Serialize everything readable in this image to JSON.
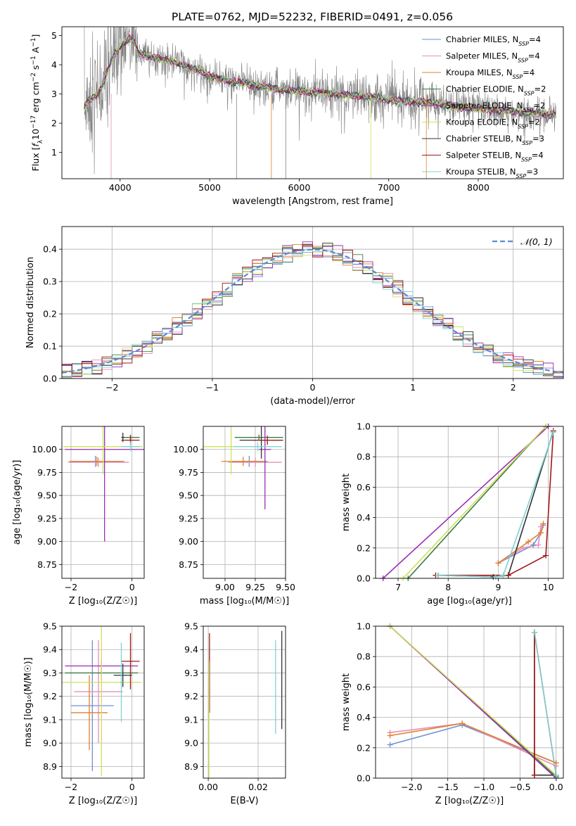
{
  "figure": {
    "title": "PLATE=0762, MJD=52232, FIBERID=0491, z=0.056"
  },
  "colors": {
    "chabrier_miles": "#6f8fd8",
    "salpeter_miles": "#e58fb8",
    "kroupa_miles": "#e0802a",
    "chabrier_elodie": "#3e7a44",
    "salpeter_elodie": "#9a2fb0",
    "kroupa_elodie": "#cfe05a",
    "chabrier_stelib": "#333333",
    "salpeter_stelib": "#a01818",
    "kroupa_stelib": "#7fd3d3",
    "data": "#808080",
    "grid": "#b0b0b0"
  },
  "chart_data": [
    {
      "id": "spectrum",
      "type": "line",
      "xlabel": "wavelength [Angstrom, rest frame]",
      "ylabel": "Flux [f_λ10^-17 erg cm^-2 s^-1 A^-1]",
      "xlim": [
        3350,
        8950
      ],
      "ylim": [
        0.1,
        5.3
      ],
      "xticks": [
        "4000",
        "5000",
        "6000",
        "7000",
        "8000"
      ],
      "yticks": [
        "1",
        "2",
        "3",
        "4",
        "5"
      ],
      "grid": false,
      "legend_placement": "upper-right",
      "legend": [
        {
          "label": "Chabrier MILES, N",
          "sub": "SSP",
          "tail": "=4",
          "color_key": "chabrier_miles"
        },
        {
          "label": "Salpeter MILES, N",
          "sub": "SSP",
          "tail": "=4",
          "color_key": "salpeter_miles"
        },
        {
          "label": "Kroupa MILES, N",
          "sub": "SSP",
          "tail": "=4",
          "color_key": "kroupa_miles"
        },
        {
          "label": "Chabrier ELODIE, N",
          "sub": "SSP",
          "tail": "=2",
          "color_key": "chabrier_elodie"
        },
        {
          "label": "Salpeter ELODIE, N",
          "sub": "SSP",
          "tail": "=2",
          "color_key": "salpeter_elodie"
        },
        {
          "label": "Kroupa ELODIE, N",
          "sub": "SSP",
          "tail": "=2",
          "color_key": "kroupa_elodie"
        },
        {
          "label": "Chabrier STELIB, N",
          "sub": "SSP",
          "tail": "=3",
          "color_key": "chabrier_stelib"
        },
        {
          "label": "Salpeter STELIB, N",
          "sub": "SSP",
          "tail": "=4",
          "color_key": "salpeter_stelib"
        },
        {
          "label": "Kroupa STELIB, N",
          "sub": "SSP",
          "tail": "=3",
          "color_key": "kroupa_stelib"
        }
      ],
      "model_continuum": {
        "x": [
          3600,
          3650,
          3700,
          3750,
          3800,
          3850,
          3900,
          3950,
          4000,
          4050,
          4100,
          4150,
          4200,
          4300,
          4400,
          4500,
          4600,
          4700,
          4800,
          4900,
          5000,
          5200,
          5400,
          5600,
          5800,
          6000,
          6200,
          6400,
          6600,
          6800,
          7000,
          7200,
          7400,
          7600,
          7800,
          8000,
          8200,
          8400,
          8600,
          8800
        ],
        "y": [
          2.5,
          2.8,
          2.9,
          3.0,
          3.3,
          3.7,
          4.1,
          4.4,
          4.6,
          4.8,
          4.9,
          4.85,
          4.4,
          4.3,
          4.25,
          4.15,
          4.1,
          4.0,
          3.85,
          3.8,
          3.6,
          3.45,
          3.35,
          3.25,
          3.15,
          3.1,
          3.05,
          3.0,
          2.95,
          2.9,
          2.8,
          2.75,
          2.7,
          2.65,
          2.55,
          2.5,
          2.45,
          2.4,
          2.35,
          2.3
        ]
      }
    },
    {
      "id": "residuals",
      "type": "line",
      "xlabel": "(data-model)/error",
      "ylabel": "Normed distribution",
      "xlim": [
        -2.5,
        2.5
      ],
      "ylim": [
        0.0,
        0.47
      ],
      "xticks": [
        "−2",
        "−1",
        "0",
        "1",
        "2"
      ],
      "yticks": [
        "0.0",
        "0.1",
        "0.2",
        "0.3",
        "0.4"
      ],
      "grid": true,
      "legend_placement": "upper-right",
      "legend": [
        {
          "label": "𝒩(0, 1)",
          "color_key": "chabrier_miles",
          "dashed": true
        }
      ],
      "bin_width": 0.1
    },
    {
      "id": "z-age",
      "type": "scatter",
      "xlabel": "Z [log₁₀(Z/Z☉)]",
      "ylabel": "age  [log₁₀(age/yr)]",
      "xlim": [
        -2.3,
        0.4
      ],
      "ylim": [
        8.6,
        10.25
      ],
      "xticks": [
        "−2",
        "0"
      ],
      "yticks": [
        "8.75",
        "9.00",
        "9.25",
        "9.50",
        "9.75",
        "10.00"
      ],
      "grid": true,
      "points": [
        {
          "model": "chabrier_miles",
          "x": -1.2,
          "xerr": 0.85,
          "y": 9.87,
          "yerr": 0.06
        },
        {
          "model": "salpeter_miles",
          "x": -1.1,
          "xerr": 1.0,
          "y": 9.86,
          "yerr": 0.05
        },
        {
          "model": "kroupa_miles",
          "x": -1.15,
          "xerr": 0.9,
          "y": 9.87,
          "yerr": 0.05
        },
        {
          "model": "chabrier_elodie",
          "x": -0.05,
          "xerr": 0.3,
          "y": 10.13,
          "yerr": 0.03
        },
        {
          "model": "salpeter_elodie",
          "x": -0.9,
          "xerr": 1.3,
          "y": 10.0,
          "yerr": 1.0
        },
        {
          "model": "kroupa_elodie",
          "x": -0.95,
          "xerr": 1.3,
          "y": 10.03,
          "yerr": 0.3
        },
        {
          "model": "chabrier_stelib",
          "x": -0.3,
          "xerr": 0.05,
          "y": 10.13,
          "yerr": 0.05
        },
        {
          "model": "salpeter_stelib",
          "x": -0.05,
          "xerr": 0.3,
          "y": 10.1,
          "yerr": 0.05
        },
        {
          "model": "kroupa_stelib",
          "x": -0.05,
          "xerr": 0.3,
          "y": 10.03,
          "yerr": 0.05
        }
      ]
    },
    {
      "id": "mass-age",
      "type": "scatter",
      "xlabel": "mass [log₁₀(M/M☉)]",
      "ylabel": "",
      "xlim": [
        8.82,
        9.5
      ],
      "ylim": [
        8.6,
        10.25
      ],
      "xticks": [
        "9.00",
        "9.25",
        "9.50"
      ],
      "yticks": [
        "8.75",
        "9.00",
        "9.25",
        "9.50",
        "9.75",
        "10.00"
      ],
      "grid": true,
      "points": [
        {
          "model": "chabrier_miles",
          "x": 9.2,
          "xerr": 0.15,
          "y": 9.87,
          "yerr": 0.06
        },
        {
          "model": "salpeter_miles",
          "x": 9.25,
          "xerr": 0.22,
          "y": 9.86,
          "yerr": 0.05
        },
        {
          "model": "kroupa_miles",
          "x": 9.15,
          "xerr": 0.18,
          "y": 9.87,
          "yerr": 0.05
        },
        {
          "model": "chabrier_elodie",
          "x": 9.28,
          "xerr": 0.2,
          "y": 10.13,
          "yerr": 0.03
        },
        {
          "model": "salpeter_elodie",
          "x": 9.33,
          "xerr": 0.05,
          "y": 10.0,
          "yerr": 0.65
        },
        {
          "model": "kroupa_elodie",
          "x": 9.05,
          "xerr": 0.25,
          "y": 10.03,
          "yerr": 0.3
        },
        {
          "model": "chabrier_stelib",
          "x": 9.3,
          "xerr": 0.18,
          "y": 10.1,
          "yerr": 0.2
        },
        {
          "model": "salpeter_stelib",
          "x": 9.35,
          "xerr": 0.12,
          "y": 10.1,
          "yerr": 0.05
        },
        {
          "model": "kroupa_stelib",
          "x": 9.27,
          "xerr": 0.2,
          "y": 10.03,
          "yerr": 0.05
        }
      ]
    },
    {
      "id": "age-weight",
      "type": "line",
      "xlabel": "age  [log₁₀(age/yr)]",
      "ylabel": "mass weight",
      "xlim": [
        6.55,
        10.3
      ],
      "ylim": [
        0.0,
        1.0
      ],
      "xticks": [
        "7",
        "8",
        "9",
        "10"
      ],
      "yticks": [
        "0.0",
        "0.2",
        "0.4",
        "0.6",
        "0.8",
        "1.0"
      ],
      "grid": true,
      "series": [
        {
          "model": "chabrier_miles",
          "x": [
            9.0,
            9.7,
            9.85,
            9.9
          ],
          "y": [
            0.1,
            0.22,
            0.3,
            0.35
          ]
        },
        {
          "model": "salpeter_miles",
          "x": [
            9.0,
            9.5,
            9.8,
            9.85
          ],
          "y": [
            0.1,
            0.2,
            0.22,
            0.34
          ]
        },
        {
          "model": "kroupa_miles",
          "x": [
            9.0,
            9.6,
            9.85,
            9.9
          ],
          "y": [
            0.1,
            0.24,
            0.3,
            0.36
          ]
        },
        {
          "model": "chabrier_elodie",
          "x": [
            7.2,
            9.95
          ],
          "y": [
            0.0,
            1.0
          ]
        },
        {
          "model": "salpeter_elodie",
          "x": [
            6.7,
            10.0
          ],
          "y": [
            0.0,
            1.0
          ]
        },
        {
          "model": "kroupa_elodie",
          "x": [
            7.1,
            9.95
          ],
          "y": [
            0.0,
            1.0
          ]
        },
        {
          "model": "chabrier_stelib",
          "x": [
            7.8,
            8.9,
            9.2,
            10.1
          ],
          "y": [
            0.02,
            0.01,
            0.02,
            0.97
          ]
        },
        {
          "model": "salpeter_stelib",
          "x": [
            7.75,
            9.2,
            9.95,
            10.1
          ],
          "y": [
            0.02,
            0.02,
            0.15,
            0.97
          ]
        },
        {
          "model": "kroupa_stelib",
          "x": [
            7.8,
            8.95,
            9.1,
            10.1
          ],
          "y": [
            0.02,
            0.01,
            0.02,
            0.96
          ]
        }
      ]
    },
    {
      "id": "z-mass",
      "type": "scatter",
      "xlabel": "Z [log₁₀(Z/Z☉)]",
      "ylabel": "mass [log₁₀(M/M☉)]",
      "xlim": [
        -2.3,
        0.4
      ],
      "ylim": [
        8.85,
        9.5
      ],
      "xticks": [
        "−2",
        "0"
      ],
      "yticks": [
        "8.9",
        "9.0",
        "9.1",
        "9.2",
        "9.3",
        "9.4",
        "9.5"
      ],
      "grid": true,
      "points": [
        {
          "model": "chabrier_miles",
          "x": -1.3,
          "xerr": 0.7,
          "y": 9.16,
          "yerr": 0.28
        },
        {
          "model": "salpeter_miles",
          "x": -1.1,
          "xerr": 0.8,
          "y": 9.22,
          "yerr": 0.22
        },
        {
          "model": "kroupa_miles",
          "x": -1.4,
          "xerr": 0.6,
          "y": 9.13,
          "yerr": 0.16
        },
        {
          "model": "chabrier_elodie",
          "x": -1.0,
          "xerr": 1.2,
          "y": 9.3,
          "yerr": 0.03
        },
        {
          "model": "salpeter_elodie",
          "x": -1.0,
          "xerr": 1.2,
          "y": 9.33,
          "yerr": 0.03
        },
        {
          "model": "kroupa_elodie",
          "x": -1.0,
          "xerr": 1.3,
          "y": 9.26,
          "yerr": 0.4
        },
        {
          "model": "chabrier_stelib",
          "x": -0.3,
          "xerr": 0.3,
          "y": 9.29,
          "yerr": 0.05
        },
        {
          "model": "salpeter_stelib",
          "x": -0.05,
          "xerr": 0.3,
          "y": 9.35,
          "yerr": 0.12
        },
        {
          "model": "kroupa_stelib",
          "x": -0.35,
          "xerr": 0.05,
          "y": 9.26,
          "yerr": 0.17
        }
      ]
    },
    {
      "id": "ebv-mass",
      "type": "scatter",
      "xlabel": "E(B-V)",
      "ylabel": "",
      "xlim": [
        -0.002,
        0.031
      ],
      "ylim": [
        8.85,
        9.5
      ],
      "xticks": [
        "0.00",
        "0.02"
      ],
      "yticks": [
        "8.9",
        "9.0",
        "9.1",
        "9.2",
        "9.3",
        "9.4",
        "9.5"
      ],
      "grid": true,
      "points": [
        {
          "model": "salpeter_stelib",
          "x": 0.0005,
          "xerr": 0,
          "y": 9.3,
          "yerr": 0.17
        },
        {
          "model": "kroupa_elodie",
          "x": 0.0003,
          "xerr": 0,
          "y": 9.1,
          "yerr": 0.25
        },
        {
          "model": "kroupa_stelib",
          "x": 0.027,
          "xerr": 0,
          "y": 9.24,
          "yerr": 0.2
        },
        {
          "model": "chabrier_stelib",
          "x": 0.0295,
          "xerr": 0,
          "y": 9.27,
          "yerr": 0.21
        }
      ]
    },
    {
      "id": "z-weight",
      "type": "line",
      "xlabel": "Z [log₁₀(Z/Z☉)]",
      "ylabel": "mass weight",
      "xlim": [
        -2.5,
        0.1
      ],
      "ylim": [
        0.0,
        1.0
      ],
      "xticks": [
        "−2.0",
        "−1.5",
        "−1.0",
        "−0.5",
        "0.0"
      ],
      "yticks": [
        "0.0",
        "0.2",
        "0.4",
        "0.6",
        "0.8",
        "1.0"
      ],
      "grid": true,
      "series": [
        {
          "model": "chabrier_miles",
          "x": [
            -2.3,
            -1.3,
            0.0
          ],
          "y": [
            0.22,
            0.35,
            0.1
          ]
        },
        {
          "model": "salpeter_miles",
          "x": [
            -2.3,
            -1.3,
            0.0
          ],
          "y": [
            0.3,
            0.36,
            0.08
          ]
        },
        {
          "model": "kroupa_miles",
          "x": [
            -2.3,
            -1.3,
            0.0
          ],
          "y": [
            0.28,
            0.36,
            0.1
          ]
        },
        {
          "model": "chabrier_elodie",
          "x": [
            -2.3,
            0.0
          ],
          "y": [
            1.0,
            0.01
          ]
        },
        {
          "model": "salpeter_elodie",
          "x": [
            -2.3,
            0.0
          ],
          "y": [
            1.0,
            0.0
          ]
        },
        {
          "model": "kroupa_elodie",
          "x": [
            -2.3,
            0.0
          ],
          "y": [
            1.0,
            0.02
          ]
        },
        {
          "model": "chabrier_stelib",
          "x": [
            -0.3,
            -0.3,
            0.0
          ],
          "y": [
            0.96,
            0.02,
            0.02
          ]
        },
        {
          "model": "salpeter_stelib",
          "x": [
            -0.3,
            -0.3,
            0.0
          ],
          "y": [
            0.02,
            0.96,
            0.02
          ]
        },
        {
          "model": "kroupa_stelib",
          "x": [
            -0.3,
            0.0
          ],
          "y": [
            0.96,
            0.02
          ]
        }
      ]
    }
  ]
}
